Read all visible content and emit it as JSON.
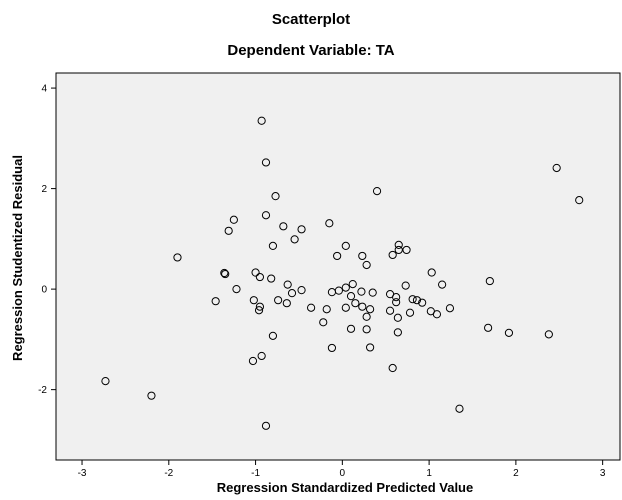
{
  "chart_data": {
    "type": "scatter",
    "title": "Scatterplot",
    "subtitle": "Dependent Variable: TA",
    "xlabel": "Regression Standardized Predicted Value",
    "ylabel": "Regression Studentized Residual",
    "xlim": [
      -3.3,
      3.2
    ],
    "ylim": [
      -3.4,
      4.3
    ],
    "xticks": [
      -3,
      -2,
      -1,
      0,
      1,
      2,
      3
    ],
    "yticks": [
      -2,
      0,
      2,
      4
    ],
    "xtick_labels": [
      "-3",
      "-2",
      "-1",
      "0",
      "1",
      "2",
      "3"
    ],
    "ytick_labels": [
      "-2",
      "0",
      "2",
      "4"
    ],
    "grid": false,
    "plot_background": "#f0f0f0",
    "marker_color": "#000000",
    "marker": "open-circle",
    "points": [
      {
        "x": -0.93,
        "y": 3.35
      },
      {
        "x": -0.88,
        "y": 2.52
      },
      {
        "x": -0.77,
        "y": 1.85
      },
      {
        "x": -0.88,
        "y": 1.47
      },
      {
        "x": -1.25,
        "y": 1.38
      },
      {
        "x": -1.31,
        "y": 1.16
      },
      {
        "x": -0.68,
        "y": 1.25
      },
      {
        "x": -0.47,
        "y": 1.19
      },
      {
        "x": -0.55,
        "y": 0.99
      },
      {
        "x": -0.8,
        "y": 0.86
      },
      {
        "x": -1.9,
        "y": 0.63
      },
      {
        "x": -1.36,
        "y": 0.32
      },
      {
        "x": -1.35,
        "y": 0.3
      },
      {
        "x": -1.0,
        "y": 0.33
      },
      {
        "x": -0.95,
        "y": 0.24
      },
      {
        "x": -0.82,
        "y": 0.21
      },
      {
        "x": -0.63,
        "y": 0.09
      },
      {
        "x": -1.22,
        "y": 0.0
      },
      {
        "x": -0.58,
        "y": -0.08
      },
      {
        "x": -0.47,
        "y": -0.02
      },
      {
        "x": -1.46,
        "y": -0.24
      },
      {
        "x": -1.02,
        "y": -0.22
      },
      {
        "x": -0.74,
        "y": -0.22
      },
      {
        "x": -0.64,
        "y": -0.28
      },
      {
        "x": -0.95,
        "y": -0.35
      },
      {
        "x": -0.96,
        "y": -0.42
      },
      {
        "x": -0.36,
        "y": -0.37
      },
      {
        "x": -0.8,
        "y": -0.93
      },
      {
        "x": -0.22,
        "y": -0.66
      },
      {
        "x": -0.93,
        "y": -1.33
      },
      {
        "x": -1.03,
        "y": -1.43
      },
      {
        "x": -0.12,
        "y": -1.17
      },
      {
        "x": -2.73,
        "y": -1.83
      },
      {
        "x": -2.2,
        "y": -2.12
      },
      {
        "x": -0.88,
        "y": -2.72
      },
      {
        "x": -0.15,
        "y": 1.31
      },
      {
        "x": 0.4,
        "y": 1.95
      },
      {
        "x": 0.04,
        "y": 0.86
      },
      {
        "x": -0.06,
        "y": 0.66
      },
      {
        "x": 0.23,
        "y": 0.66
      },
      {
        "x": 0.28,
        "y": 0.48
      },
      {
        "x": 0.65,
        "y": 0.88
      },
      {
        "x": 0.65,
        "y": 0.78
      },
      {
        "x": 0.74,
        "y": 0.78
      },
      {
        "x": 0.58,
        "y": 0.68
      },
      {
        "x": 1.03,
        "y": 0.33
      },
      {
        "x": 1.15,
        "y": 0.09
      },
      {
        "x": 0.73,
        "y": 0.07
      },
      {
        "x": 0.12,
        "y": 0.1
      },
      {
        "x": 0.04,
        "y": 0.03
      },
      {
        "x": -0.04,
        "y": -0.03
      },
      {
        "x": -0.12,
        "y": -0.06
      },
      {
        "x": 0.1,
        "y": -0.14
      },
      {
        "x": 0.22,
        "y": -0.05
      },
      {
        "x": 0.35,
        "y": -0.07
      },
      {
        "x": 0.55,
        "y": -0.1
      },
      {
        "x": 0.62,
        "y": -0.16
      },
      {
        "x": 0.81,
        "y": -0.2
      },
      {
        "x": 0.86,
        "y": -0.22
      },
      {
        "x": 0.92,
        "y": -0.27
      },
      {
        "x": 0.62,
        "y": -0.26
      },
      {
        "x": 0.15,
        "y": -0.28
      },
      {
        "x": 0.23,
        "y": -0.35
      },
      {
        "x": 0.04,
        "y": -0.37
      },
      {
        "x": -0.18,
        "y": -0.4
      },
      {
        "x": 0.32,
        "y": -0.4
      },
      {
        "x": 0.55,
        "y": -0.43
      },
      {
        "x": 0.78,
        "y": -0.47
      },
      {
        "x": 1.02,
        "y": -0.44
      },
      {
        "x": 1.09,
        "y": -0.5
      },
      {
        "x": 1.24,
        "y": -0.38
      },
      {
        "x": 0.28,
        "y": -0.55
      },
      {
        "x": 0.64,
        "y": -0.57
      },
      {
        "x": 0.1,
        "y": -0.79
      },
      {
        "x": 0.28,
        "y": -0.8
      },
      {
        "x": 0.64,
        "y": -0.86
      },
      {
        "x": 0.32,
        "y": -1.16
      },
      {
        "x": 0.58,
        "y": -1.57
      },
      {
        "x": 1.35,
        "y": -2.38
      },
      {
        "x": 1.68,
        "y": -0.77
      },
      {
        "x": 1.92,
        "y": -0.87
      },
      {
        "x": 2.38,
        "y": -0.9
      },
      {
        "x": 1.7,
        "y": 0.16
      },
      {
        "x": 2.47,
        "y": 2.41
      },
      {
        "x": 2.73,
        "y": 1.77
      }
    ]
  }
}
